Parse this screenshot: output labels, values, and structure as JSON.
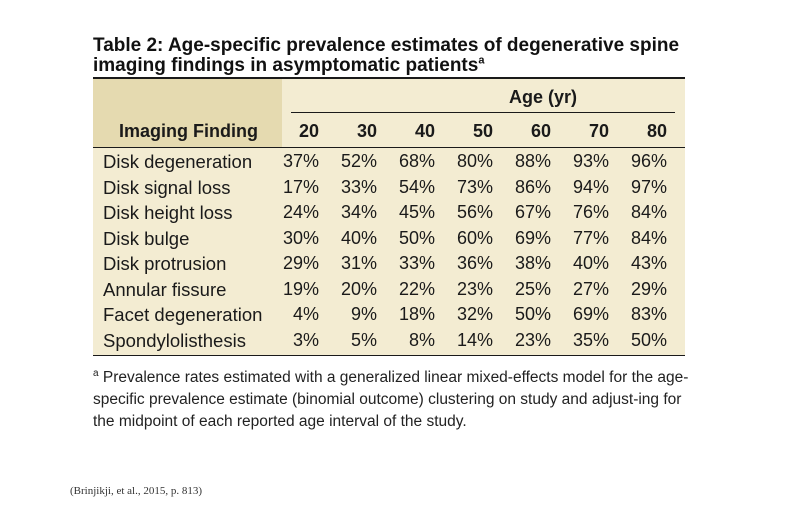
{
  "title": {
    "text": "Table 2: Age-specific prevalence estimates of degenerative spine imaging findings in asymptomatic patients",
    "marker": "a"
  },
  "table": {
    "group_header": "Age (yr)",
    "finding_header": "Imaging Finding",
    "ages": [
      "20",
      "30",
      "40",
      "50",
      "60",
      "70",
      "80"
    ],
    "rows": [
      {
        "label": "Disk degeneration",
        "values": [
          "37%",
          "52%",
          "68%",
          "80%",
          "88%",
          "93%",
          "96%"
        ]
      },
      {
        "label": "Disk signal loss",
        "values": [
          "17%",
          "33%",
          "54%",
          "73%",
          "86%",
          "94%",
          "97%"
        ]
      },
      {
        "label": "Disk height loss",
        "values": [
          "24%",
          "34%",
          "45%",
          "56%",
          "67%",
          "76%",
          "84%"
        ]
      },
      {
        "label": "Disk bulge",
        "values": [
          "30%",
          "40%",
          "50%",
          "60%",
          "69%",
          "77%",
          "84%"
        ]
      },
      {
        "label": "Disk protrusion",
        "values": [
          "29%",
          "31%",
          "33%",
          "36%",
          "38%",
          "40%",
          "43%"
        ]
      },
      {
        "label": "Annular fissure",
        "values": [
          "19%",
          "20%",
          "22%",
          "23%",
          "25%",
          "27%",
          "29%"
        ]
      },
      {
        "label": "Facet degeneration",
        "values": [
          "4%",
          "9%",
          "18%",
          "32%",
          "50%",
          "69%",
          "83%"
        ]
      },
      {
        "label": "Spondylolisthesis",
        "values": [
          "3%",
          "5%",
          "8%",
          "14%",
          "23%",
          "35%",
          "50%"
        ]
      }
    ]
  },
  "footnote": {
    "marker": "a",
    "text": "Prevalence rates estimated with a generalized linear mixed-effects model for the age-specific prevalence estimate (binomial outcome) clustering on study and adjust-ing for the midpoint of each reported age interval of the study."
  },
  "source": "(Brinjikji, et al., 2015, p. 813)"
}
